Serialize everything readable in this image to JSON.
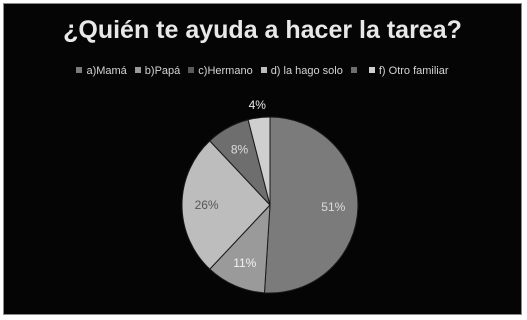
{
  "chart_data": {
    "type": "pie",
    "title": "¿Quién te ayuda a hacer la tarea?",
    "legend_position": "top",
    "slices": [
      {
        "label": "a)Mamá",
        "value": 51,
        "data_label": "51%",
        "color": "#7b7b7b",
        "label_color": "#dcdcdc"
      },
      {
        "label": "b)Papá",
        "value": 11,
        "data_label": "11%",
        "color": "#9a9a9a",
        "label_color": "#f2f2f2"
      },
      {
        "label": "c)Hermano",
        "value": 0,
        "data_label": "",
        "color": "#5a5a5a",
        "label_color": "#ffffff"
      },
      {
        "label": "d) la hago solo",
        "value": 26,
        "data_label": "26%",
        "color": "#bdbdbd",
        "label_color": "#555555"
      },
      {
        "label": "",
        "value": 8,
        "data_label": "8%",
        "color": "#6e6e6e",
        "label_color": "#dcdcdc"
      },
      {
        "label": "f) Otro familiar",
        "value": 4,
        "data_label": "4%",
        "color": "#cfcfcf",
        "label_color": "#e8e8e8"
      }
    ]
  }
}
